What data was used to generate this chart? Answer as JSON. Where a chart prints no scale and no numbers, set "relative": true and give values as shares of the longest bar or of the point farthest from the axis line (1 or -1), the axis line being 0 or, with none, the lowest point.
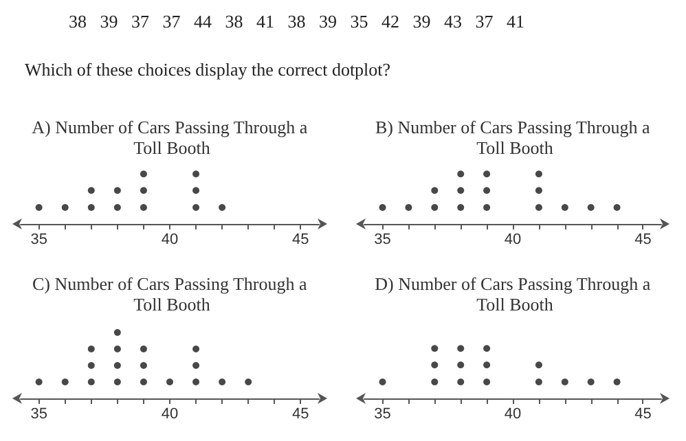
{
  "chart_data": [
    {
      "type": "other",
      "annotations": [
        "38   39   37   37   44   38   41   38   39   35   42   39   43   37   41",
        "Which of these choices display the correct dotplot?"
      ]
    },
    {
      "type": "scatter",
      "relative": true,
      "title": "A) Number of Cars Passing Through a Toll Booth",
      "x": [
        35,
        36,
        37,
        37,
        38,
        38,
        39,
        39,
        39,
        41,
        41,
        41,
        42
      ],
      "values": [
        0.33,
        0.33,
        0.33,
        0.67,
        0.33,
        0.67,
        0.33,
        0.67,
        1,
        0.33,
        0.67,
        1,
        0.33
      ],
      "color": "#1a1a1a",
      "marker": "circle",
      "grid": false,
      "tick_labels": "x",
      "xlim": [
        34.3,
        45.7
      ],
      "xticks": [
        35,
        {
          "value": 36,
          "label": null
        },
        {
          "value": 37,
          "label": null
        },
        {
          "value": 38,
          "label": null
        },
        {
          "value": 39,
          "label": null
        },
        40,
        {
          "value": 41,
          "label": null
        },
        {
          "value": 42,
          "label": null
        },
        {
          "value": 43,
          "label": null
        },
        {
          "value": 44,
          "label": null
        },
        45
      ]
    },
    {
      "type": "scatter",
      "relative": true,
      "title": "B) Number of Cars Passing Through a Toll Booth",
      "x": [
        35,
        36,
        37,
        37,
        38,
        38,
        38,
        39,
        39,
        39,
        41,
        41,
        41,
        42,
        43,
        44
      ],
      "values": [
        0.33,
        0.33,
        0.33,
        0.67,
        0.33,
        0.67,
        1,
        0.33,
        0.67,
        1,
        0.33,
        0.67,
        1,
        0.33,
        0.33,
        0.33
      ],
      "color": "#1a1a1a",
      "marker": "circle",
      "grid": false,
      "tick_labels": "x",
      "xlim": [
        34.3,
        45.7
      ],
      "xticks": [
        35,
        {
          "value": 36,
          "label": null
        },
        {
          "value": 37,
          "label": null
        },
        {
          "value": 38,
          "label": null
        },
        {
          "value": 39,
          "label": null
        },
        40,
        {
          "value": 41,
          "label": null
        },
        {
          "value": 42,
          "label": null
        },
        {
          "value": 43,
          "label": null
        },
        {
          "value": 44,
          "label": null
        },
        45
      ]
    },
    {
      "type": "scatter",
      "relative": true,
      "title": "C) Number of Cars Passing Through a Toll Booth",
      "x": [
        35,
        36,
        37,
        37,
        37,
        38,
        38,
        38,
        38,
        39,
        39,
        39,
        40,
        41,
        41,
        41,
        42,
        43
      ],
      "values": [
        0.25,
        0.25,
        0.25,
        0.5,
        0.75,
        0.25,
        0.5,
        0.75,
        1,
        0.25,
        0.5,
        0.75,
        0.25,
        0.25,
        0.5,
        0.75,
        0.25,
        0.25
      ],
      "color": "#1a1a1a",
      "marker": "circle",
      "grid": false,
      "tick_labels": "x",
      "xlim": [
        34.3,
        45.7
      ],
      "xticks": [
        35,
        {
          "value": 36,
          "label": null
        },
        {
          "value": 37,
          "label": null
        },
        {
          "value": 38,
          "label": null
        },
        {
          "value": 39,
          "label": null
        },
        40,
        {
          "value": 41,
          "label": null
        },
        {
          "value": 42,
          "label": null
        },
        {
          "value": 43,
          "label": null
        },
        {
          "value": 44,
          "label": null
        },
        45
      ]
    },
    {
      "type": "scatter",
      "relative": true,
      "title": "D) Number of Cars Passing Through a Toll Booth",
      "x": [
        35,
        37,
        37,
        37,
        38,
        38,
        38,
        39,
        39,
        39,
        41,
        41,
        42,
        43,
        44
      ],
      "values": [
        0.33,
        0.33,
        0.67,
        1,
        0.33,
        0.67,
        1,
        0.33,
        0.67,
        1,
        0.33,
        0.67,
        0.33,
        0.33,
        0.33
      ],
      "color": "#1a1a1a",
      "marker": "circle",
      "grid": false,
      "tick_labels": "x",
      "xlim": [
        34.3,
        45.7
      ],
      "xticks": [
        35,
        {
          "value": 36,
          "label": null
        },
        {
          "value": 37,
          "label": null
        },
        {
          "value": 38,
          "label": null
        },
        {
          "value": 39,
          "label": null
        },
        40,
        {
          "value": 41,
          "label": null
        },
        {
          "value": 42,
          "label": null
        },
        {
          "value": 43,
          "label": null
        },
        {
          "value": 44,
          "label": null
        },
        45
      ]
    }
  ]
}
